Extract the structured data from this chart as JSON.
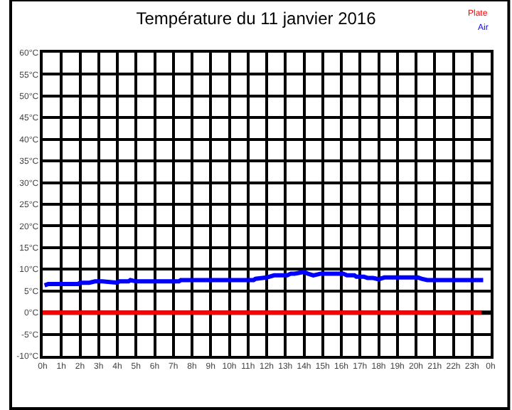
{
  "chart_data": {
    "type": "line",
    "title": "Température du 11 janvier 2016",
    "series": [
      {
        "name": "Plate",
        "color": "#ff0000",
        "x": [
          "2016-01-11T00:00",
          "2016-01-11T23:30"
        ],
        "values": [
          0,
          0
        ]
      },
      {
        "name": "Air",
        "color": "#0000ff",
        "x": [
          "2016-01-11T00:06",
          "2016-01-11T00:18",
          "2016-01-11T01:54",
          "2016-01-11T02:00",
          "2016-01-11T02:30",
          "2016-01-11T02:48",
          "2016-01-11T03:12",
          "2016-01-11T04:00",
          "2016-01-11T04:06",
          "2016-01-11T04:36",
          "2016-01-11T04:42",
          "2016-01-11T05:00",
          "2016-01-11T07:18",
          "2016-01-11T07:24",
          "2016-01-11T11:18",
          "2016-01-11T11:24",
          "2016-01-11T12:00",
          "2016-01-11T12:24",
          "2016-01-11T13:06",
          "2016-01-11T13:18",
          "2016-01-11T13:30",
          "2016-01-11T14:00",
          "2016-01-11T14:12",
          "2016-01-11T14:30",
          "2016-01-11T14:54",
          "2016-01-11T16:06",
          "2016-01-11T16:18",
          "2016-01-11T16:42",
          "2016-01-11T16:48",
          "2016-01-11T17:12",
          "2016-01-11T17:24",
          "2016-01-11T17:42",
          "2016-01-11T18:00",
          "2016-01-11T18:18",
          "2016-01-11T20:06",
          "2016-01-11T20:18",
          "2016-01-11T20:36",
          "2016-01-11T23:36"
        ],
        "values": [
          6.3,
          6.6,
          6.6,
          6.9,
          6.9,
          7.2,
          7.2,
          6.9,
          7.2,
          7.2,
          7.5,
          7.2,
          7.2,
          7.5,
          7.5,
          7.8,
          8.1,
          8.6,
          8.6,
          9.0,
          9.0,
          9.4,
          9.0,
          8.6,
          9.0,
          9.0,
          8.6,
          8.6,
          8.3,
          8.3,
          8.0,
          8.0,
          7.7,
          8.1,
          8.1,
          7.8,
          7.5,
          7.5
        ]
      }
    ],
    "xlim": [
      "2016-01-11T00:00",
      "2016-01-12T00:00"
    ],
    "xticks": [
      {
        "value": "2016-01-11T00:00",
        "label": "0h"
      },
      {
        "value": "2016-01-11T01:00",
        "label": "1h"
      },
      {
        "value": "2016-01-11T02:00",
        "label": "2h"
      },
      {
        "value": "2016-01-11T03:00",
        "label": "3h"
      },
      {
        "value": "2016-01-11T04:00",
        "label": "4h"
      },
      {
        "value": "2016-01-11T05:00",
        "label": "5h"
      },
      {
        "value": "2016-01-11T06:00",
        "label": "6h"
      },
      {
        "value": "2016-01-11T07:00",
        "label": "7h"
      },
      {
        "value": "2016-01-11T08:00",
        "label": "8h"
      },
      {
        "value": "2016-01-11T09:00",
        "label": "9h"
      },
      {
        "value": "2016-01-11T10:00",
        "label": "10h"
      },
      {
        "value": "2016-01-11T11:00",
        "label": "11h"
      },
      {
        "value": "2016-01-11T12:00",
        "label": "12h"
      },
      {
        "value": "2016-01-11T13:00",
        "label": "13h"
      },
      {
        "value": "2016-01-11T14:00",
        "label": "14h"
      },
      {
        "value": "2016-01-11T15:00",
        "label": "15h"
      },
      {
        "value": "2016-01-11T16:00",
        "label": "16h"
      },
      {
        "value": "2016-01-11T17:00",
        "label": "17h"
      },
      {
        "value": "2016-01-11T18:00",
        "label": "18h"
      },
      {
        "value": "2016-01-11T19:00",
        "label": "19h"
      },
      {
        "value": "2016-01-11T20:00",
        "label": "20h"
      },
      {
        "value": "2016-01-11T21:00",
        "label": "21h"
      },
      {
        "value": "2016-01-11T22:00",
        "label": "22h"
      },
      {
        "value": "2016-01-11T23:00",
        "label": "23h"
      },
      {
        "value": "2016-01-12T00:00",
        "label": "0h"
      }
    ],
    "ylim": [
      -10,
      60
    ],
    "yticks": [
      {
        "value": -10,
        "label": "-10°C"
      },
      {
        "value": -5,
        "label": "-5°C"
      },
      {
        "value": 0,
        "label": "0°C"
      },
      {
        "value": 5,
        "label": "5°C"
      },
      {
        "value": 10,
        "label": "10°C"
      },
      {
        "value": 15,
        "label": "15°C"
      },
      {
        "value": 20,
        "label": "20°C"
      },
      {
        "value": 25,
        "label": "25°C"
      },
      {
        "value": 30,
        "label": "30°C"
      },
      {
        "value": 35,
        "label": "35°C"
      },
      {
        "value": 40,
        "label": "40°C"
      },
      {
        "value": 45,
        "label": "45°C"
      },
      {
        "value": 50,
        "label": "50°C"
      },
      {
        "value": 55,
        "label": "55°C"
      },
      {
        "value": 60,
        "label": "60°C"
      }
    ],
    "ref_lines": [
      {
        "axis": "y",
        "value": 0,
        "color": "#000000"
      }
    ],
    "grid": true,
    "legend": "top right",
    "marker": "none",
    "line_style": "solid"
  }
}
